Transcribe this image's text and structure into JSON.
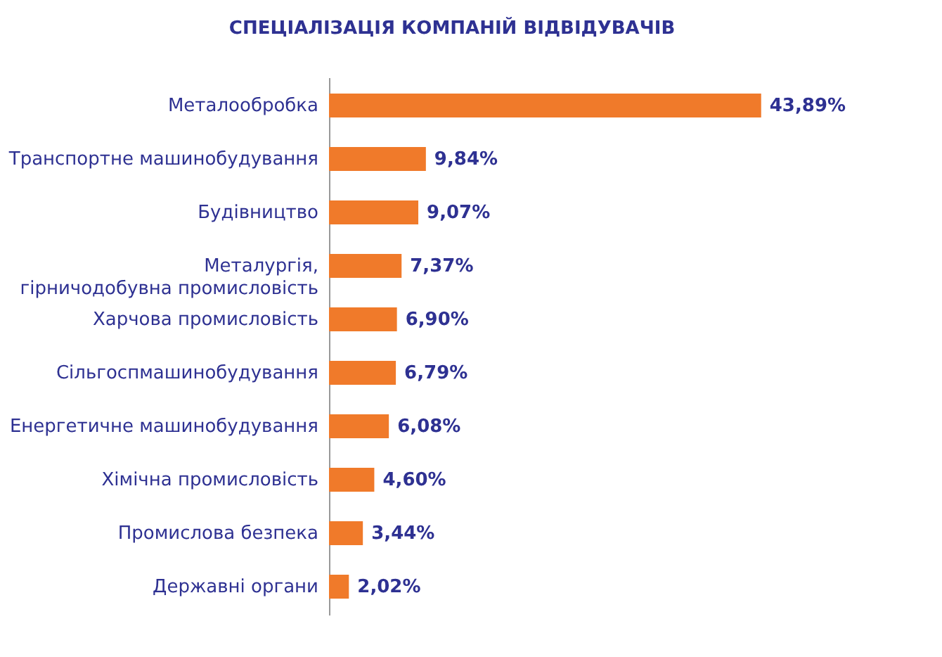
{
  "chart_data": {
    "type": "bar",
    "orientation": "horizontal",
    "title": "СПЕЦІАЛІЗАЦІЯ КОМПАНІЙ ВІДВІДУВАЧІВ",
    "categories": [
      "Металообробка",
      "Транспортне машинобудування",
      "Будівництво",
      "Металургія, гірничодобувна промисловість",
      "Харчова промисловість",
      "Сільгоспмашинобудування",
      "Енергетичне машинобудування",
      "Хімічна промисловість",
      "Промислова безпека",
      "Державні органи"
    ],
    "values": [
      43.89,
      9.84,
      9.07,
      7.37,
      6.9,
      6.79,
      6.08,
      4.6,
      3.44,
      2.02
    ],
    "value_labels": [
      "43,89%",
      "9,84%",
      "9,07%",
      "7,37%",
      "6,90%",
      "6,79%",
      "6,08%",
      "4,60%",
      "3,44%",
      "2,02%"
    ],
    "color": "#f07a2a"
  }
}
